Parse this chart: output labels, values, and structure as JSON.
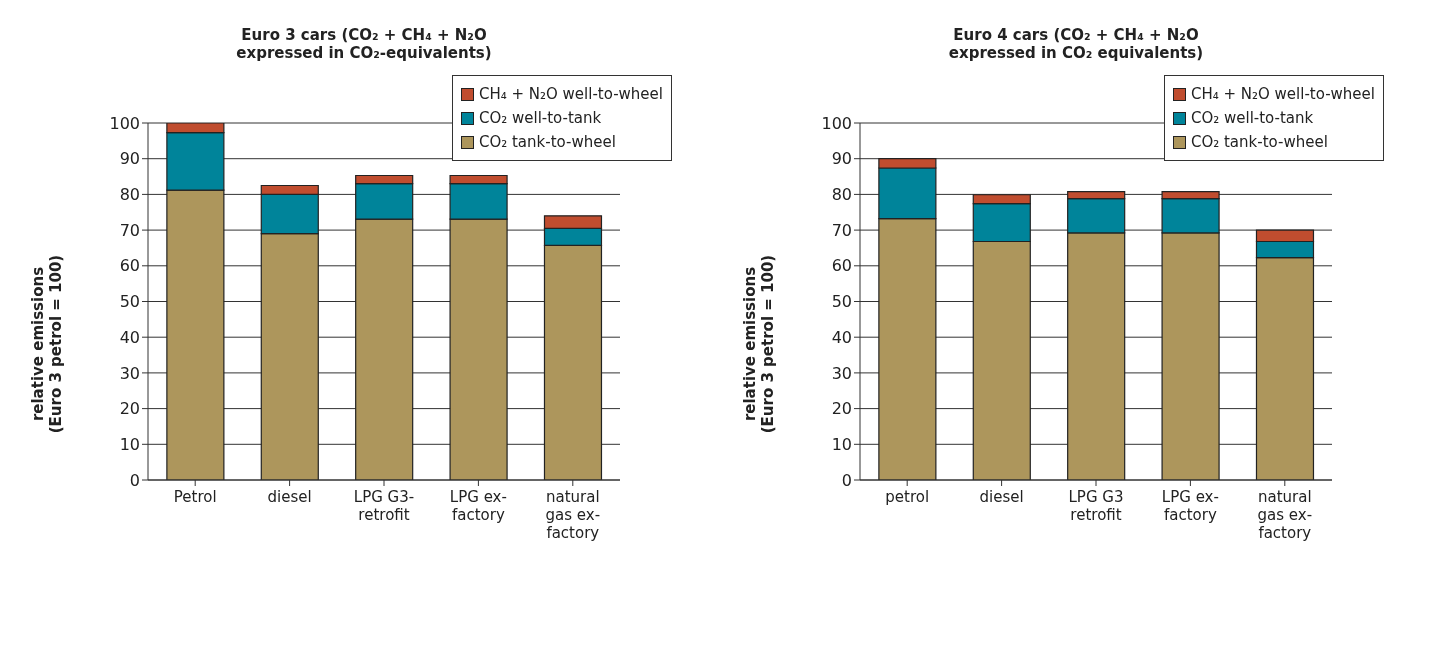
{
  "chart_data": [
    {
      "type": "bar",
      "title": "Euro 3 cars (CO₂ + CH₄ + N₂O expressed in CO₂-equivalents)",
      "ylabel": "relative emissions (Euro 3 petrol = 100)",
      "categories": [
        "Petrol",
        "diesel",
        "LPG G3-retrofit",
        "LPG ex-factory",
        "natural gas ex-factory"
      ],
      "stacked": true,
      "series": [
        {
          "name": "CO₂ tank-to-wheel",
          "color": "#ad965c",
          "values": [
            81.2,
            69,
            73.1,
            73.1,
            65.7
          ]
        },
        {
          "name": "CO₂ well-to-tank",
          "color": "#00849a",
          "values": [
            16.1,
            11,
            9.9,
            9.9,
            4.8
          ]
        },
        {
          "name": "CH₄ + N₂O well-to-wheel",
          "color": "#c04d2f",
          "values": [
            2.7,
            2.5,
            2.3,
            2.3,
            3.5
          ]
        }
      ],
      "ylim": [
        0,
        100
      ],
      "yticks": [
        0,
        10,
        20,
        30,
        40,
        50,
        60,
        70,
        80,
        90,
        100
      ],
      "grid": "y",
      "legend": "top right"
    },
    {
      "type": "bar",
      "title": "Euro 4 cars (CO₂ + CH₄ + N₂O expressed in CO₂ equivalents)",
      "ylabel": "relative emissions (Euro 3 petrol = 100)",
      "categories": [
        "petrol",
        "diesel",
        "LPG G3 retrofit",
        "LPG ex-factory",
        "natural gas ex-factory"
      ],
      "stacked": true,
      "series": [
        {
          "name": "CO₂ tank-to-wheel",
          "color": "#ad965c",
          "values": [
            73.2,
            66.8,
            69.2,
            69.2,
            62.3
          ]
        },
        {
          "name": "CO₂ well-to-tank",
          "color": "#00849a",
          "values": [
            14.2,
            10.6,
            9.6,
            9.6,
            4.5
          ]
        },
        {
          "name": "CH₄ + N₂O well-to-wheel",
          "color": "#c04d2f",
          "values": [
            2.6,
            2.5,
            2.0,
            2.0,
            3.2
          ]
        }
      ],
      "ylim": [
        0,
        100
      ],
      "yticks": [
        0,
        10,
        20,
        30,
        40,
        50,
        60,
        70,
        80,
        90,
        100
      ],
      "grid": "y",
      "legend": "top right"
    }
  ]
}
